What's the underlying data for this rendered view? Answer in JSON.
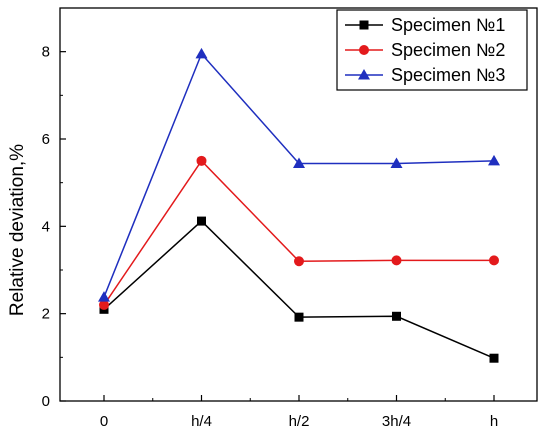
{
  "chart_data": {
    "type": "line",
    "title": "",
    "xlabel": "",
    "ylabel": "Relative deviation,%",
    "categories": [
      "0",
      "h/4",
      "h/2",
      "3h/4",
      "h"
    ],
    "ylim": [
      0,
      9
    ],
    "yticks": [
      0,
      2,
      4,
      6,
      8
    ],
    "grid": false,
    "legend_position": "top-right",
    "series": [
      {
        "name": "Specimen №1",
        "values": [
          2.1,
          4.12,
          1.92,
          1.94,
          0.98
        ],
        "color": "#000000",
        "marker": "square"
      },
      {
        "name": "Specimen №2",
        "values": [
          2.2,
          5.5,
          3.2,
          3.22,
          3.22
        ],
        "color": "#e31a1c",
        "marker": "circle"
      },
      {
        "name": "Specimen №3",
        "values": [
          2.38,
          7.95,
          5.44,
          5.44,
          5.5
        ],
        "color": "#1f2fbf",
        "marker": "triangle"
      }
    ]
  }
}
